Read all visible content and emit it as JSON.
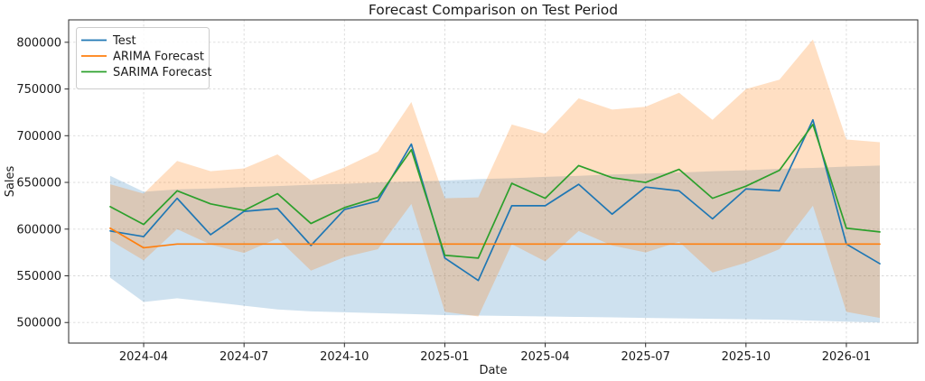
{
  "chart_data": {
    "type": "line",
    "title": "Forecast Comparison on Test Period",
    "xlabel": "Date",
    "ylabel": "Sales",
    "grid": true,
    "legend_position": "upper-left",
    "background_color": "#ffffff",
    "ylim": [
      478000,
      824000
    ],
    "y_ticks": [
      500000,
      550000,
      600000,
      650000,
      700000,
      750000,
      800000
    ],
    "x_ticks": [
      "2024-04",
      "2024-07",
      "2024-10",
      "2025-01",
      "2025-04",
      "2025-07",
      "2025-10",
      "2026-01"
    ],
    "x": [
      "2024-03",
      "2024-04",
      "2024-05",
      "2024-06",
      "2024-07",
      "2024-08",
      "2024-09",
      "2024-10",
      "2024-11",
      "2024-12",
      "2025-01",
      "2025-02",
      "2025-03",
      "2025-04",
      "2025-05",
      "2025-06",
      "2025-07",
      "2025-08",
      "2025-09",
      "2025-10",
      "2025-11",
      "2025-12",
      "2026-01",
      "2026-02"
    ],
    "series": [
      {
        "name": "Test",
        "color": "#1f77b4",
        "values": [
          598000,
          592000,
          633000,
          594000,
          619000,
          622000,
          582500,
          621000,
          630000,
          691000,
          569000,
          545000,
          625000,
          625000,
          648000,
          616000,
          645000,
          641000,
          611000,
          643000,
          641000,
          717000,
          584000,
          563000
        ]
      },
      {
        "name": "ARIMA Forecast",
        "color": "#ff7f0e",
        "values": [
          601000,
          580000,
          584000,
          584000,
          584000,
          584000,
          584000,
          584000,
          584000,
          584000,
          584000,
          584000,
          584000,
          584000,
          584000,
          584000,
          584000,
          584000,
          584000,
          584000,
          584000,
          584000,
          584000,
          584000
        ],
        "band": {
          "fill": "rgba(31,119,180,0.22)",
          "upper": [
            657000,
            640000,
            642500,
            643500,
            645000,
            646000,
            647500,
            648500,
            650000,
            651000,
            652000,
            653500,
            654500,
            656000,
            657000,
            658500,
            659500,
            660500,
            662000,
            663000,
            664500,
            665500,
            667000,
            668000
          ],
          "lower": [
            548000,
            522000,
            526000,
            522000,
            518000,
            514000,
            512000,
            511000,
            510000,
            509000,
            508000,
            507500,
            507000,
            506500,
            506000,
            505500,
            505000,
            504500,
            504000,
            503500,
            503000,
            502000,
            501000,
            500000
          ]
        }
      },
      {
        "name": "SARIMA Forecast",
        "color": "#2ca02c",
        "values": [
          624000,
          605000,
          641000,
          627000,
          620000,
          638000,
          606000,
          623000,
          634000,
          685000,
          572000,
          569000,
          649000,
          633000,
          668000,
          655000,
          650000,
          664000,
          633000,
          646000,
          663000,
          712000,
          601000,
          597000
        ],
        "band": {
          "fill": "rgba(255,127,14,0.25)",
          "upper": [
            648000,
            638000,
            673000,
            662000,
            665000,
            680000,
            652000,
            666000,
            683000,
            736000,
            633000,
            634000,
            712000,
            702000,
            740000,
            728000,
            731000,
            746000,
            717000,
            750000,
            760000,
            803000,
            696000,
            693000
          ],
          "lower": [
            588000,
            566500,
            600000,
            583500,
            574500,
            590000,
            555500,
            570000,
            578500,
            627000,
            511500,
            506500,
            584000,
            565500,
            598000,
            582500,
            575000,
            586500,
            553500,
            564000,
            578500,
            625000,
            511500,
            505000
          ]
        }
      }
    ],
    "style": {
      "grid_color": "#d9d9d9",
      "spine_color": "#2b2b2b",
      "legend_border": "#cccccc"
    }
  }
}
